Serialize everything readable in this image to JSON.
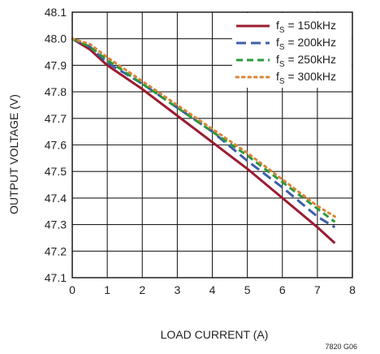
{
  "chart_data": {
    "type": "line",
    "xlabel": "LOAD CURRENT (A)",
    "ylabel": "OUTPUT VOLTAGE (V)",
    "xlim": [
      0,
      8
    ],
    "ylim": [
      47.1,
      48.1
    ],
    "x_ticks": [
      "0",
      "1",
      "2",
      "3",
      "4",
      "5",
      "6",
      "7",
      "8"
    ],
    "y_ticks": [
      "47.1",
      "47.2",
      "47.3",
      "47.4",
      "47.5",
      "47.6",
      "47.7",
      "47.8",
      "47.9",
      "48.0",
      "48.1"
    ],
    "grid": true,
    "legend_position": "top-right",
    "series": [
      {
        "name": "fS = 150kHz",
        "label_main": "f",
        "label_sub": "S",
        "label_rest": " = 150kHz",
        "color": "#9b1b30",
        "dash": "solid",
        "x": [
          0,
          0.5,
          1,
          2,
          3,
          4,
          5,
          6,
          7,
          7.5
        ],
        "y": [
          48.0,
          47.96,
          47.9,
          47.81,
          47.71,
          47.61,
          47.51,
          47.4,
          47.29,
          47.23
        ]
      },
      {
        "name": "fS = 200kHz",
        "label_main": "f",
        "label_sub": "S",
        "label_rest": " = 200kHz",
        "color": "#3c5fa8",
        "dash": "long-dash",
        "x": [
          0,
          0.5,
          1,
          2,
          3,
          4,
          5,
          6,
          7,
          7.5
        ],
        "y": [
          48.0,
          47.97,
          47.91,
          47.83,
          47.74,
          47.65,
          47.54,
          47.44,
          47.33,
          47.29
        ]
      },
      {
        "name": "fS = 250kHz",
        "label_main": "f",
        "label_sub": "S",
        "label_rest": " = 250kHz",
        "color": "#2a9a3e",
        "dash": "dash",
        "x": [
          0,
          0.5,
          1,
          2,
          3,
          4,
          5,
          6,
          7,
          7.5
        ],
        "y": [
          48.0,
          47.97,
          47.92,
          47.83,
          47.74,
          47.65,
          47.56,
          47.46,
          47.36,
          47.31
        ]
      },
      {
        "name": "fS = 300kHz",
        "label_main": "f",
        "label_sub": "S",
        "label_rest": " = 300kHz",
        "color": "#d98536",
        "dash": "dot",
        "x": [
          0,
          0.5,
          1,
          2,
          3,
          4,
          5,
          6,
          7,
          7.5
        ],
        "y": [
          48.0,
          47.98,
          47.93,
          47.84,
          47.75,
          47.66,
          47.57,
          47.47,
          47.37,
          47.33
        ]
      }
    ]
  },
  "figure_id": "7820 G06"
}
